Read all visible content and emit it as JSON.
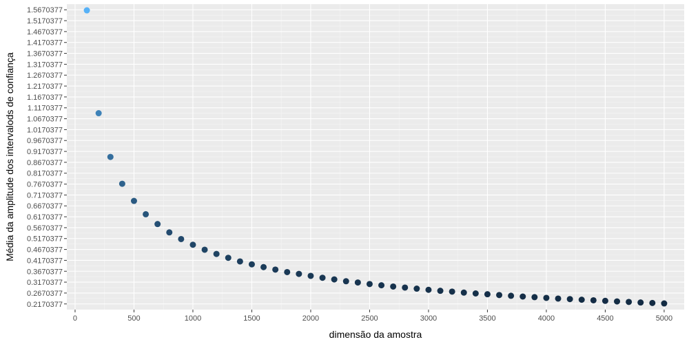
{
  "chart_data": {
    "type": "scatter",
    "title": "",
    "xlabel": "dimensão da amostra",
    "ylabel": "Média da amplitude dos intervalods de confiança",
    "xlim": [
      -70,
      5170
    ],
    "ylim": [
      0.191,
      1.593
    ],
    "x_ticks": [
      0,
      500,
      1000,
      1500,
      2000,
      2500,
      3000,
      3500,
      4000,
      4500,
      5000
    ],
    "x_tick_labels": [
      "0",
      "500",
      "1000",
      "1500",
      "2000",
      "2500",
      "3000",
      "3500",
      "4000",
      "4500",
      "5000"
    ],
    "y_ticks": [
      0.2170377,
      0.2670377,
      0.3170377,
      0.3670377,
      0.4170377,
      0.4670377,
      0.5170377,
      0.5670377,
      0.6170377,
      0.6670377,
      0.7170377,
      0.7670377,
      0.8170377,
      0.8670377,
      0.9170377,
      0.9670377,
      1.0170377,
      1.0670377,
      1.1170377,
      1.1670377,
      1.2170377,
      1.2670377,
      1.3170377,
      1.3670377,
      1.4170377,
      1.4670377,
      1.5170377,
      1.5670377
    ],
    "y_tick_labels": [
      "0.2170377",
      "0.2670377",
      "0.3170377",
      "0.3670377",
      "0.4170377",
      "0.4670377",
      "0.5170377",
      "0.5670377",
      "0.6170377",
      "0.6670377",
      "0.7170377",
      "0.7670377",
      "0.8170377",
      "0.8670377",
      "0.9170377",
      "0.9670377",
      "1.0170377",
      "1.0670377",
      "1.1170377",
      "1.1670377",
      "1.2170377",
      "1.2670377",
      "1.3170377",
      "1.3670377",
      "1.4170377",
      "1.4670377",
      "1.5170377",
      "1.5670377"
    ],
    "grid": true,
    "legend": "none",
    "color_scale": {
      "low": "#132B43",
      "high": "#56B1F7"
    },
    "series": [
      {
        "x": [
          100,
          200,
          300,
          400,
          500,
          600,
          700,
          800,
          900,
          1000,
          1100,
          1200,
          1300,
          1400,
          1500,
          1600,
          1700,
          1800,
          1900,
          2000,
          2100,
          2200,
          2300,
          2400,
          2500,
          2600,
          2700,
          2800,
          2900,
          3000,
          3100,
          3200,
          3300,
          3400,
          3500,
          3600,
          3700,
          3800,
          3900,
          4000,
          4100,
          4200,
          4300,
          4400,
          4500,
          4600,
          4700,
          4800,
          4900,
          5000
        ],
        "y": [
          1.5644,
          1.0924,
          0.8917,
          0.7686,
          0.6898,
          0.6286,
          0.5836,
          0.5454,
          0.5147,
          0.4886,
          0.4658,
          0.4464,
          0.4287,
          0.4122,
          0.3987,
          0.386,
          0.3746,
          0.3632,
          0.3549,
          0.3458,
          0.3371,
          0.3297,
          0.3211,
          0.3154,
          0.3083,
          0.3027,
          0.2969,
          0.2922,
          0.2872,
          0.2818,
          0.2774,
          0.2736,
          0.269,
          0.2652,
          0.2615,
          0.2579,
          0.2545,
          0.251,
          0.2482,
          0.2447,
          0.2417,
          0.2392,
          0.2364,
          0.2337,
          0.2312,
          0.2286,
          0.2262,
          0.2237,
          0.2214,
          0.2193
        ]
      }
    ]
  }
}
